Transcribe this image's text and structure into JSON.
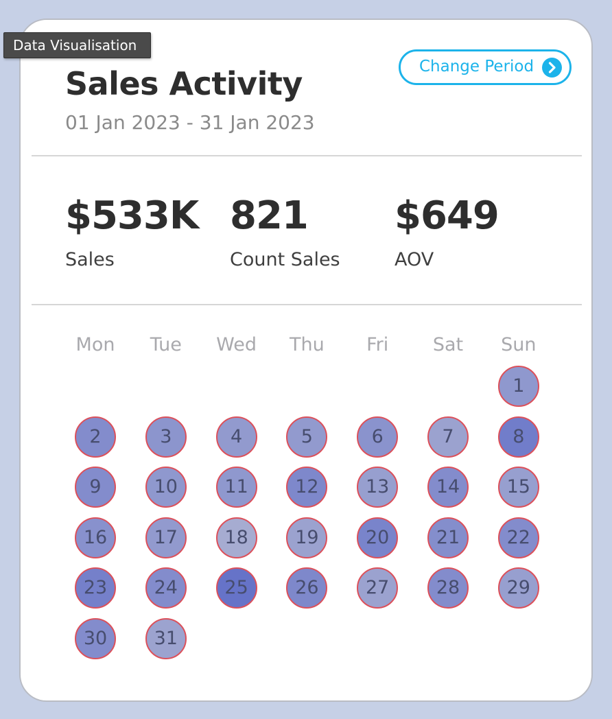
{
  "tooltip": "Data Visualisation",
  "header": {
    "title": "Sales Activity",
    "date_range": "01 Jan 2023 - 31 Jan 2023",
    "change_period_label": "Change Period",
    "change_period_icon": "chevron-right-icon"
  },
  "stats": [
    {
      "value": "$533K",
      "label": "Sales"
    },
    {
      "value": "821",
      "label": "Count Sales"
    },
    {
      "value": "$649",
      "label": "AOV"
    }
  ],
  "calendar": {
    "weekdays": [
      "Mon",
      "Tue",
      "Wed",
      "Thu",
      "Fri",
      "Sat",
      "Sun"
    ],
    "first_weekday_index": 6,
    "days": [
      {
        "day": "1",
        "intensity": 0.45
      },
      {
        "day": "2",
        "intensity": 0.62
      },
      {
        "day": "3",
        "intensity": 0.5
      },
      {
        "day": "4",
        "intensity": 0.42
      },
      {
        "day": "5",
        "intensity": 0.42
      },
      {
        "day": "6",
        "intensity": 0.52
      },
      {
        "day": "7",
        "intensity": 0.3
      },
      {
        "day": "8",
        "intensity": 0.85
      },
      {
        "day": "9",
        "intensity": 0.62
      },
      {
        "day": "10",
        "intensity": 0.45
      },
      {
        "day": "11",
        "intensity": 0.45
      },
      {
        "day": "12",
        "intensity": 0.68
      },
      {
        "day": "13",
        "intensity": 0.35
      },
      {
        "day": "14",
        "intensity": 0.62
      },
      {
        "day": "15",
        "intensity": 0.35
      },
      {
        "day": "16",
        "intensity": 0.55
      },
      {
        "day": "17",
        "intensity": 0.42
      },
      {
        "day": "18",
        "intensity": 0.15
      },
      {
        "day": "19",
        "intensity": 0.3
      },
      {
        "day": "20",
        "intensity": 0.75
      },
      {
        "day": "21",
        "intensity": 0.6
      },
      {
        "day": "22",
        "intensity": 0.62
      },
      {
        "day": "23",
        "intensity": 0.8
      },
      {
        "day": "24",
        "intensity": 0.62
      },
      {
        "day": "25",
        "intensity": 1.0
      },
      {
        "day": "26",
        "intensity": 0.68
      },
      {
        "day": "27",
        "intensity": 0.3
      },
      {
        "day": "28",
        "intensity": 0.62
      },
      {
        "day": "29",
        "intensity": 0.35
      },
      {
        "day": "30",
        "intensity": 0.62
      },
      {
        "day": "31",
        "intensity": 0.28
      }
    ]
  },
  "colors": {
    "accent": "#1cb3ea",
    "day_low": "#b1b6d2",
    "day_high": "#6673c8",
    "day_border": "#dc505a"
  }
}
